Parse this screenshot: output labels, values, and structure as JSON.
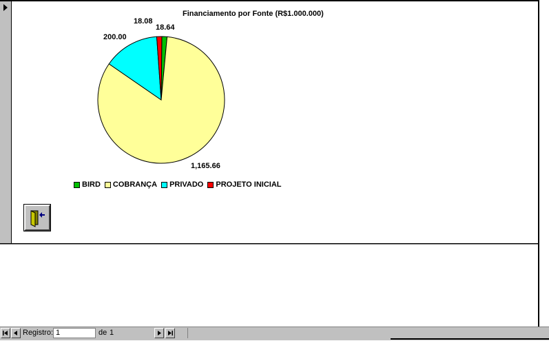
{
  "chart_data": {
    "type": "pie",
    "title": "Financiamento por Fonte (R$1.000.000)",
    "categories": [
      "BIRD",
      "COBRANÇA",
      "PRIVADO",
      "PROJETO INICIAL"
    ],
    "values": [
      18.64,
      1165.66,
      200.0,
      18.08
    ],
    "value_labels": [
      "18.64",
      "1,165.66",
      "200.00",
      "18.08"
    ],
    "colors": [
      "#00c000",
      "#ffff99",
      "#00ffff",
      "#ff0000"
    ],
    "legend_position": "bottom"
  },
  "exit_button": {
    "icon": "exit-door-icon"
  },
  "navigation": {
    "record_label": "Registro:",
    "current_record": "1",
    "of_label": "de",
    "total_records": "1",
    "buttons": [
      "first-record-icon",
      "previous-record-icon",
      "next-record-icon",
      "last-record-icon"
    ]
  }
}
